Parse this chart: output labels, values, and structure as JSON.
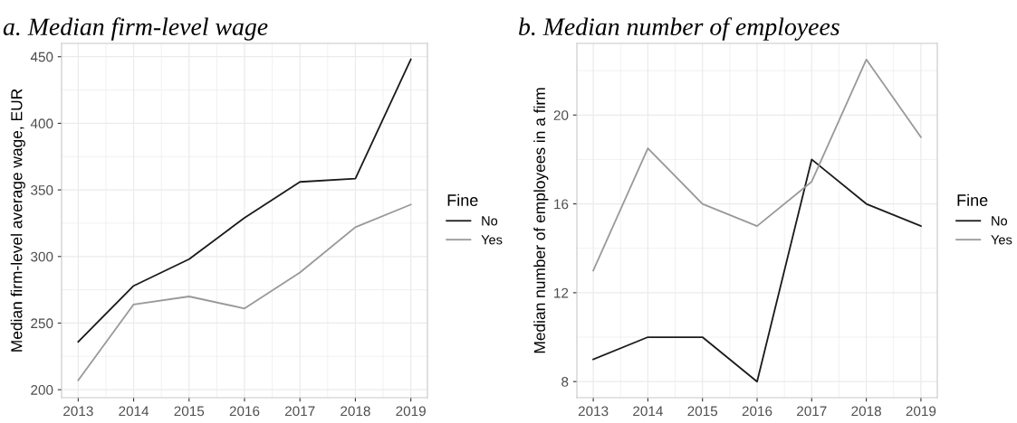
{
  "chart_data": [
    {
      "type": "line",
      "title": "a. Median firm-level wage",
      "ylabel": "Median firm-level average wage, EUR",
      "legend_title": "Fine",
      "legend": "right",
      "grid": true,
      "x": [
        2013,
        2014,
        2015,
        2016,
        2017,
        2018,
        2019
      ],
      "xlim": [
        2012.7,
        2019.3
      ],
      "xticks": [
        2013,
        2014,
        2015,
        2016,
        2017,
        2018,
        2019
      ],
      "ylim": [
        194,
        460
      ],
      "yticks": [
        200,
        250,
        300,
        350,
        400,
        450
      ],
      "series": [
        {
          "name": "No",
          "color": "#1a1a1a",
          "values": [
            236,
            278,
            298,
            329,
            356,
            358.5,
            448
          ]
        },
        {
          "name": "Yes",
          "color": "#999999",
          "values": [
            207,
            264,
            270,
            261,
            288,
            322,
            339
          ]
        }
      ]
    },
    {
      "type": "line",
      "title": "b. Median number of employees",
      "ylabel": "Median number of employees in a firm",
      "legend_title": "Fine",
      "legend": "right",
      "grid": true,
      "x": [
        2013,
        2014,
        2015,
        2016,
        2017,
        2018,
        2019
      ],
      "xlim": [
        2012.7,
        2019.3
      ],
      "xticks": [
        2013,
        2014,
        2015,
        2016,
        2017,
        2018,
        2019
      ],
      "ylim": [
        7.275,
        23.225
      ],
      "yticks": [
        8,
        12,
        16,
        20
      ],
      "series": [
        {
          "name": "No",
          "color": "#1a1a1a",
          "values": [
            9,
            10,
            10,
            8,
            18,
            16,
            15
          ]
        },
        {
          "name": "Yes",
          "color": "#999999",
          "values": [
            13,
            18.5,
            16,
            15,
            17,
            22.5,
            19
          ]
        }
      ]
    }
  ]
}
